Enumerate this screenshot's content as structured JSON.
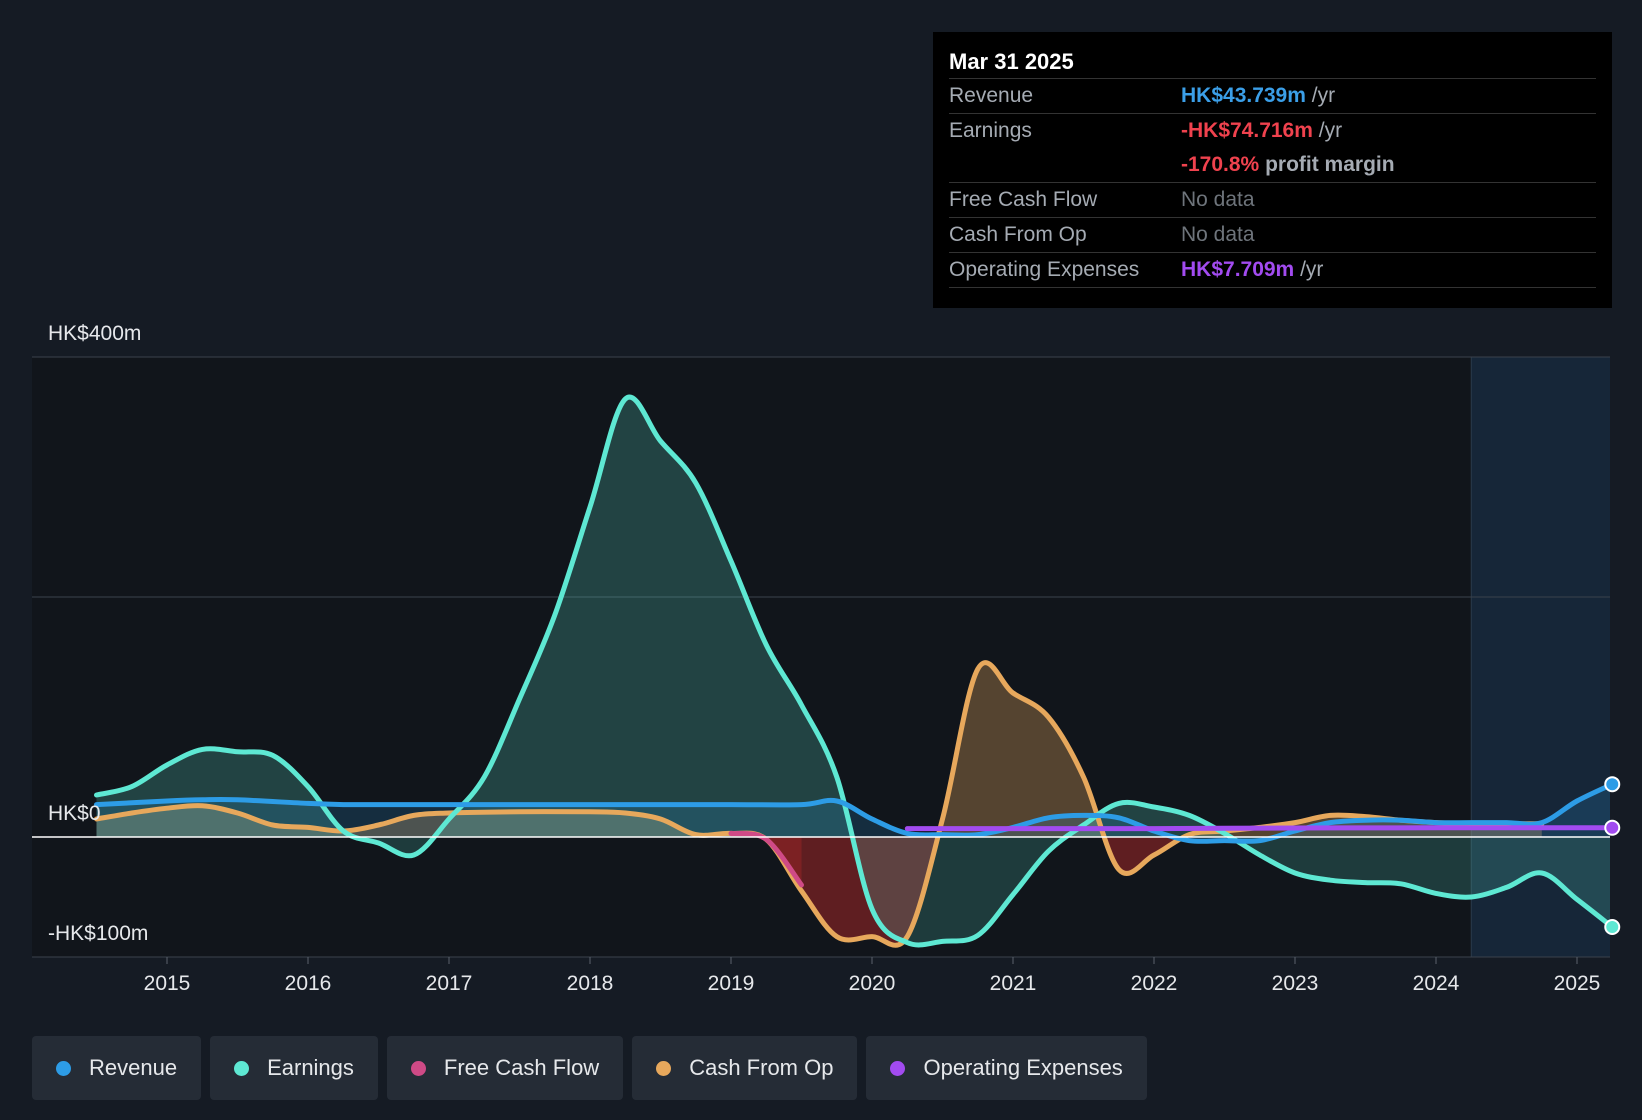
{
  "tooltip": {
    "date": "Mar 31 2025",
    "revenue_label": "Revenue",
    "revenue_value": "HK$43.739m",
    "revenue_unit": "/yr",
    "earnings_label": "Earnings",
    "earnings_value": "-HK$74.716m",
    "earnings_unit": "/yr",
    "margin_value": "-170.8%",
    "margin_text": "profit margin",
    "fcf_label": "Free Cash Flow",
    "fcf_value": "No data",
    "cfo_label": "Cash From Op",
    "cfo_value": "No data",
    "opex_label": "Operating Expenses",
    "opex_value": "HK$7.709m",
    "opex_unit": "/yr"
  },
  "legend": [
    {
      "label": "Revenue",
      "color": "#2d9ce6"
    },
    {
      "label": "Earnings",
      "color": "#5ee8d3"
    },
    {
      "label": "Free Cash Flow",
      "color": "#cf4a86"
    },
    {
      "label": "Cash From Op",
      "color": "#e7a85c"
    },
    {
      "label": "Operating Expenses",
      "color": "#a24bf0"
    }
  ],
  "chart_data": {
    "type": "line",
    "title": "",
    "xlabel": "",
    "ylabel": "",
    "ylim": [
      -100,
      400
    ],
    "x_ticks": [
      "2015",
      "2016",
      "2017",
      "2018",
      "2019",
      "2020",
      "2021",
      "2022",
      "2023",
      "2024",
      "2025"
    ],
    "y_labels": {
      "top": "HK$400m",
      "zero": "HK$0",
      "bottom": "-HK$100m"
    },
    "forecast_start": 2024.25,
    "series": [
      {
        "name": "Earnings",
        "color": "#5ee8d3",
        "x": [
          2014.5,
          2014.75,
          2015.0,
          2015.25,
          2015.5,
          2015.75,
          2016.0,
          2016.25,
          2016.5,
          2016.75,
          2017.0,
          2017.25,
          2017.5,
          2017.75,
          2018.0,
          2018.25,
          2018.5,
          2018.75,
          2019.0,
          2019.25,
          2019.5,
          2019.75,
          2020.0,
          2020.25,
          2020.5,
          2020.75,
          2021.0,
          2021.25,
          2021.5,
          2021.75,
          2022.0,
          2022.25,
          2022.5,
          2022.75,
          2023.0,
          2023.25,
          2023.5,
          2023.75,
          2024.0,
          2024.25,
          2024.5,
          2024.75,
          2025.0,
          2025.25
        ],
        "values": [
          35,
          42,
          60,
          73,
          71,
          68,
          42,
          5,
          -5,
          -15,
          15,
          50,
          115,
          185,
          275,
          365,
          330,
          295,
          230,
          160,
          110,
          50,
          -60,
          -88,
          -87,
          -82,
          -48,
          -12,
          10,
          28,
          25,
          18,
          3,
          -15,
          -30,
          -36,
          -38,
          -39,
          -47,
          -50,
          -42,
          -30,
          -52,
          -75
        ]
      },
      {
        "name": "Revenue",
        "color": "#2d9ce6",
        "x": [
          2014.5,
          2015.0,
          2015.25,
          2015.5,
          2016.0,
          2016.25,
          2016.5,
          2017.0,
          2017.5,
          2018.0,
          2018.5,
          2019.0,
          2019.5,
          2019.75,
          2020.0,
          2020.25,
          2020.5,
          2020.75,
          2021.0,
          2021.25,
          2021.5,
          2021.75,
          2022.0,
          2022.25,
          2022.5,
          2022.75,
          2023.0,
          2023.25,
          2023.5,
          2023.75,
          2024.0,
          2024.25,
          2024.5,
          2024.75,
          2025.0,
          2025.25
        ],
        "values": [
          27,
          30,
          31,
          31,
          28,
          27,
          27,
          27,
          27,
          27,
          27,
          27,
          27,
          30,
          15,
          3,
          2,
          2,
          8,
          16,
          18,
          16,
          5,
          -3,
          -3,
          -3,
          5,
          12,
          14,
          14,
          12,
          12,
          12,
          12,
          30,
          44
        ]
      },
      {
        "name": "Cash From Op",
        "color": "#e7a85c",
        "x": [
          2014.5,
          2014.75,
          2015.0,
          2015.25,
          2015.5,
          2015.75,
          2016.0,
          2016.25,
          2016.5,
          2016.75,
          2017.0,
          2017.5,
          2018.0,
          2018.25,
          2018.5,
          2018.75,
          2019.0,
          2019.25,
          2019.5,
          2019.75,
          2020.0,
          2020.25,
          2020.5,
          2020.75,
          2021.0,
          2021.25,
          2021.5,
          2021.75,
          2022.0,
          2022.25,
          2022.5,
          2022.75,
          2023.0,
          2023.25,
          2023.5,
          2023.75,
          2024.0,
          2024.25,
          2024.5,
          2024.75
        ],
        "values": [
          15,
          20,
          24,
          26,
          20,
          10,
          8,
          5,
          10,
          18,
          20,
          21,
          21,
          20,
          15,
          2,
          3,
          -2,
          -45,
          -83,
          -83,
          -83,
          15,
          140,
          120,
          100,
          50,
          -27,
          -15,
          2,
          5,
          8,
          12,
          18,
          17,
          14,
          12,
          11,
          11,
          11
        ]
      },
      {
        "name": "Free Cash Flow",
        "color": "#cf4a86",
        "x": [
          2019.0,
          2019.25,
          2019.5
        ],
        "values": [
          3,
          -2,
          -40
        ]
      },
      {
        "name": "Operating Expenses",
        "color": "#a24bf0",
        "x": [
          2020.25,
          2021.0,
          2022.0,
          2023.0,
          2024.0,
          2025.25
        ],
        "values": [
          7,
          7,
          7,
          7.5,
          7.7,
          7.709
        ]
      }
    ]
  }
}
